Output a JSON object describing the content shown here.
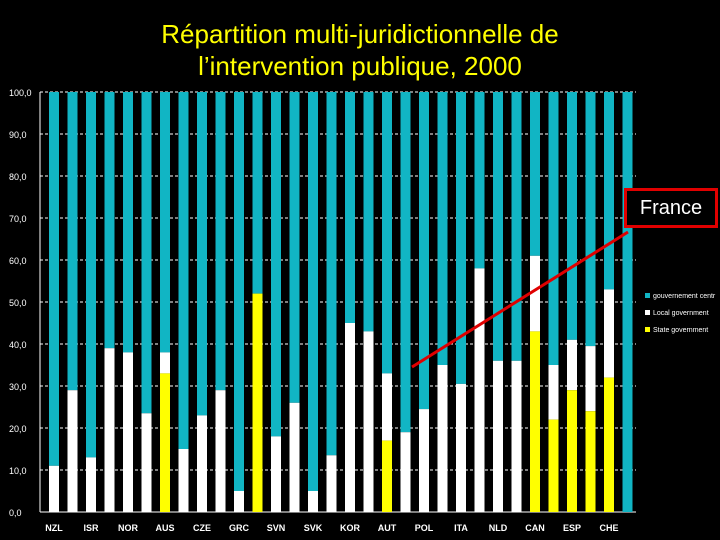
{
  "title": {
    "line1": "Répartition multi-juridictionnelle de",
    "line2": "l’intervention publique, 2000"
  },
  "callout": {
    "label": "France"
  },
  "chart_data": {
    "type": "bar",
    "stacked": true,
    "title": "Répartition multi-juridictionnelle de l’intervention publique, 2000",
    "ylim": [
      0,
      100
    ],
    "yticks": [
      "0,0",
      "10,0",
      "20,0",
      "30,0",
      "40,0",
      "50,0",
      "60,0",
      "70,0",
      "80,0",
      "90,0",
      "100,0"
    ],
    "categories_labeled": [
      "NZL",
      "ISR",
      "NOR",
      "AUS",
      "CZE",
      "GRC",
      "SVN",
      "SVK",
      "KOR",
      "AUT",
      "POL",
      "ITA",
      "NLD",
      "CAN",
      "ESP",
      "CHE"
    ],
    "bars": [
      {
        "label": "NZL",
        "state": 0,
        "local": 11
      },
      {
        "label": "",
        "state": 0,
        "local": 29
      },
      {
        "label": "ISR",
        "state": 0,
        "local": 13
      },
      {
        "label": "",
        "state": 0,
        "local": 39
      },
      {
        "label": "NOR",
        "state": 0,
        "local": 38
      },
      {
        "label": "",
        "state": 0,
        "local": 23.5
      },
      {
        "label": "AUS",
        "state": 33,
        "local": 5
      },
      {
        "label": "",
        "state": 0,
        "local": 15
      },
      {
        "label": "CZE",
        "state": 0,
        "local": 23
      },
      {
        "label": "",
        "state": 0,
        "local": 29
      },
      {
        "label": "GRC",
        "state": 0,
        "local": 5
      },
      {
        "label": "",
        "state": 52,
        "local": 0
      },
      {
        "label": "SVN",
        "state": 0,
        "local": 18
      },
      {
        "label": "",
        "state": 0,
        "local": 26
      },
      {
        "label": "SVK",
        "state": 0,
        "local": 5
      },
      {
        "label": "",
        "state": 0,
        "local": 13.5
      },
      {
        "label": "KOR",
        "state": 0,
        "local": 45
      },
      {
        "label": "",
        "state": 0,
        "local": 43
      },
      {
        "label": "AUT",
        "state": 17,
        "local": 16
      },
      {
        "label": "",
        "state": 0,
        "local": 19
      },
      {
        "label": "POL",
        "state": 0,
        "local": 24.5
      },
      {
        "label": "",
        "state": 0,
        "local": 35
      },
      {
        "label": "ITA",
        "state": 0,
        "local": 30.5
      },
      {
        "label": "",
        "state": 0,
        "local": 58
      },
      {
        "label": "NLD",
        "state": 0,
        "local": 36
      },
      {
        "label": "",
        "state": 0,
        "local": 36
      },
      {
        "label": "CAN",
        "state": 43,
        "local": 18
      },
      {
        "label": "",
        "state": 22,
        "local": 13
      },
      {
        "label": "ESP",
        "state": 29,
        "local": 12
      },
      {
        "label": "",
        "state": 24,
        "local": 15.5
      },
      {
        "label": "CHE",
        "state": 32,
        "local": 21
      },
      {
        "label": "",
        "state": 0,
        "local": 0
      }
    ],
    "series": [
      {
        "name": "gouvernement centr",
        "color": "#11b5c4"
      },
      {
        "name": "Local government",
        "color": "#ffffff"
      },
      {
        "name": "State government",
        "color": "#ffff00"
      }
    ],
    "legend_position": "right",
    "grid": true
  },
  "colors": {
    "background": "#000000",
    "title": "#ffff00",
    "callout_border": "#e00000",
    "arrow": "#e00000"
  }
}
